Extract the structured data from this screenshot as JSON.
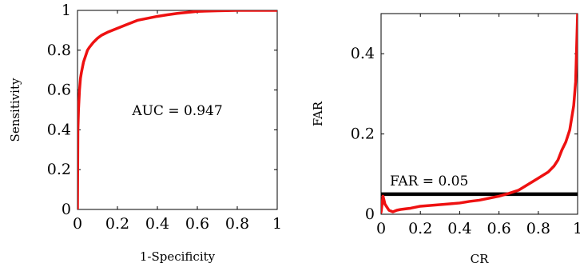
{
  "chart_data": [
    {
      "type": "line",
      "xlabel": "1-Specificity",
      "ylabel": "Sensitivity",
      "xlim": [
        0,
        1
      ],
      "ylim": [
        0,
        1
      ],
      "xticks": [
        0,
        0.2,
        0.4,
        0.6,
        0.8,
        1
      ],
      "xtick_labels": [
        "0",
        "0.2",
        "0.4",
        "0.6",
        "0.8",
        "1"
      ],
      "yticks": [
        0,
        0.2,
        0.4,
        0.6,
        0.8,
        1
      ],
      "ytick_labels": [
        "0",
        "0.2",
        "0.4",
        "0.6",
        "0.8",
        "1"
      ],
      "annotation": "AUC = 0.947",
      "grid": false,
      "series": [
        {
          "color": "#ee1111",
          "x": [
            0,
            0.002,
            0.005,
            0.01,
            0.015,
            0.02,
            0.03,
            0.04,
            0.05,
            0.06,
            0.08,
            0.1,
            0.12,
            0.15,
            0.2,
            0.25,
            0.3,
            0.35,
            0.4,
            0.45,
            0.5,
            0.55,
            0.6,
            0.7,
            0.8,
            0.9,
            1
          ],
          "y": [
            0,
            0.4,
            0.5,
            0.6,
            0.66,
            0.69,
            0.74,
            0.77,
            0.8,
            0.815,
            0.84,
            0.86,
            0.875,
            0.89,
            0.91,
            0.93,
            0.95,
            0.96,
            0.97,
            0.978,
            0.985,
            0.99,
            0.995,
            0.998,
            1,
            1,
            1
          ]
        }
      ]
    },
    {
      "type": "line",
      "xlabel": "CR",
      "ylabel": "FAR",
      "xlim": [
        0,
        1
      ],
      "ylim": [
        0,
        0.5
      ],
      "xticks": [
        0,
        0.2,
        0.4,
        0.6,
        0.8,
        1
      ],
      "xtick_labels": [
        "0",
        "0.2",
        "0.4",
        "0.6",
        "0.8",
        "1"
      ],
      "yticks": [
        0,
        0.2,
        0.4
      ],
      "ytick_labels": [
        "0",
        "0.2",
        "0.4"
      ],
      "annotation": "FAR = 0.05",
      "threshold": 0.05,
      "grid": false,
      "series": [
        {
          "color": "#ee1111",
          "x": [
            0,
            0.01,
            0.02,
            0.04,
            0.06,
            0.08,
            0.1,
            0.15,
            0.2,
            0.25,
            0.3,
            0.35,
            0.4,
            0.45,
            0.5,
            0.55,
            0.6,
            0.65,
            0.7,
            0.75,
            0.8,
            0.85,
            0.88,
            0.9,
            0.92,
            0.94,
            0.96,
            0.97,
            0.98,
            0.99,
            1
          ],
          "y": [
            0.005,
            0.045,
            0.025,
            0.01,
            0.006,
            0.01,
            0.012,
            0.015,
            0.02,
            0.022,
            0.024,
            0.026,
            0.028,
            0.032,
            0.035,
            0.04,
            0.045,
            0.052,
            0.06,
            0.075,
            0.09,
            0.105,
            0.12,
            0.135,
            0.16,
            0.18,
            0.21,
            0.24,
            0.27,
            0.33,
            0.5
          ]
        }
      ]
    }
  ]
}
